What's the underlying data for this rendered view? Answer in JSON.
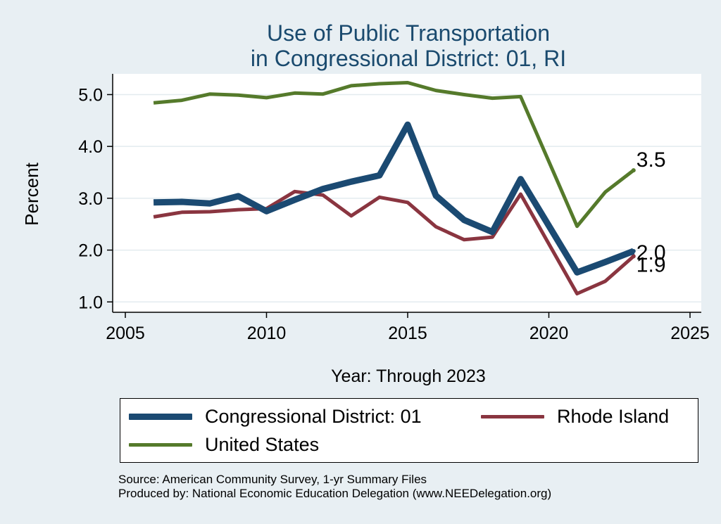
{
  "chart_data": {
    "type": "line",
    "title": [
      "Use of Public Transportation",
      "in Congressional District: 01, RI"
    ],
    "xlabel": "Year: Through 2023",
    "ylabel": "Percent",
    "xlim": [
      2005,
      2025
    ],
    "ylim": [
      0.8,
      5.4
    ],
    "xticks": [
      2005,
      2010,
      2015,
      2020,
      2025
    ],
    "yticks": [
      1.0,
      2.0,
      3.0,
      4.0,
      5.0
    ],
    "ytick_labels": [
      "1.0",
      "2.0",
      "3.0",
      "4.0",
      "5.0"
    ],
    "grid": true,
    "legend_position": "bottom",
    "x": [
      2006,
      2007,
      2008,
      2009,
      2010,
      2011,
      2012,
      2013,
      2014,
      2015,
      2016,
      2017,
      2018,
      2019,
      2021,
      2022,
      2023
    ],
    "series": [
      {
        "name": "Congressional District: 01",
        "color": "#1b4a72",
        "width": 9,
        "values": [
          2.92,
          2.93,
          2.9,
          3.04,
          2.75,
          2.97,
          3.18,
          3.32,
          3.44,
          4.42,
          3.05,
          2.58,
          2.35,
          3.37,
          1.57,
          1.77,
          1.98
        ],
        "end_label": "2.0"
      },
      {
        "name": "Rhode Island",
        "color": "#8a3540",
        "width": 5,
        "values": [
          2.64,
          2.73,
          2.74,
          2.78,
          2.8,
          3.13,
          3.06,
          2.66,
          3.02,
          2.92,
          2.45,
          2.2,
          2.25,
          3.08,
          1.16,
          1.4,
          1.88
        ],
        "end_label": "1.9"
      },
      {
        "name": "United States",
        "color": "#557a2b",
        "width": 5,
        "values": [
          4.84,
          4.89,
          5.01,
          4.99,
          4.94,
          5.03,
          5.01,
          5.17,
          5.21,
          5.23,
          5.08,
          5.0,
          4.93,
          4.96,
          2.46,
          3.12,
          3.54
        ],
        "end_label": "3.5"
      }
    ]
  },
  "legend": {
    "cd_label": "Congressional District: 01",
    "ri_label": "Rhode Island",
    "us_label": "United States"
  },
  "footer": {
    "source": "Source: American Community Survey, 1-yr Summary Files",
    "produced": "Produced by: National Economic Education Delegation (www.NEEDelegation.org)"
  },
  "colors": {
    "background": "#e8eff3",
    "plot_area": "#ffffff",
    "title": "#1a4a6e",
    "grid": "#e3ebef"
  }
}
